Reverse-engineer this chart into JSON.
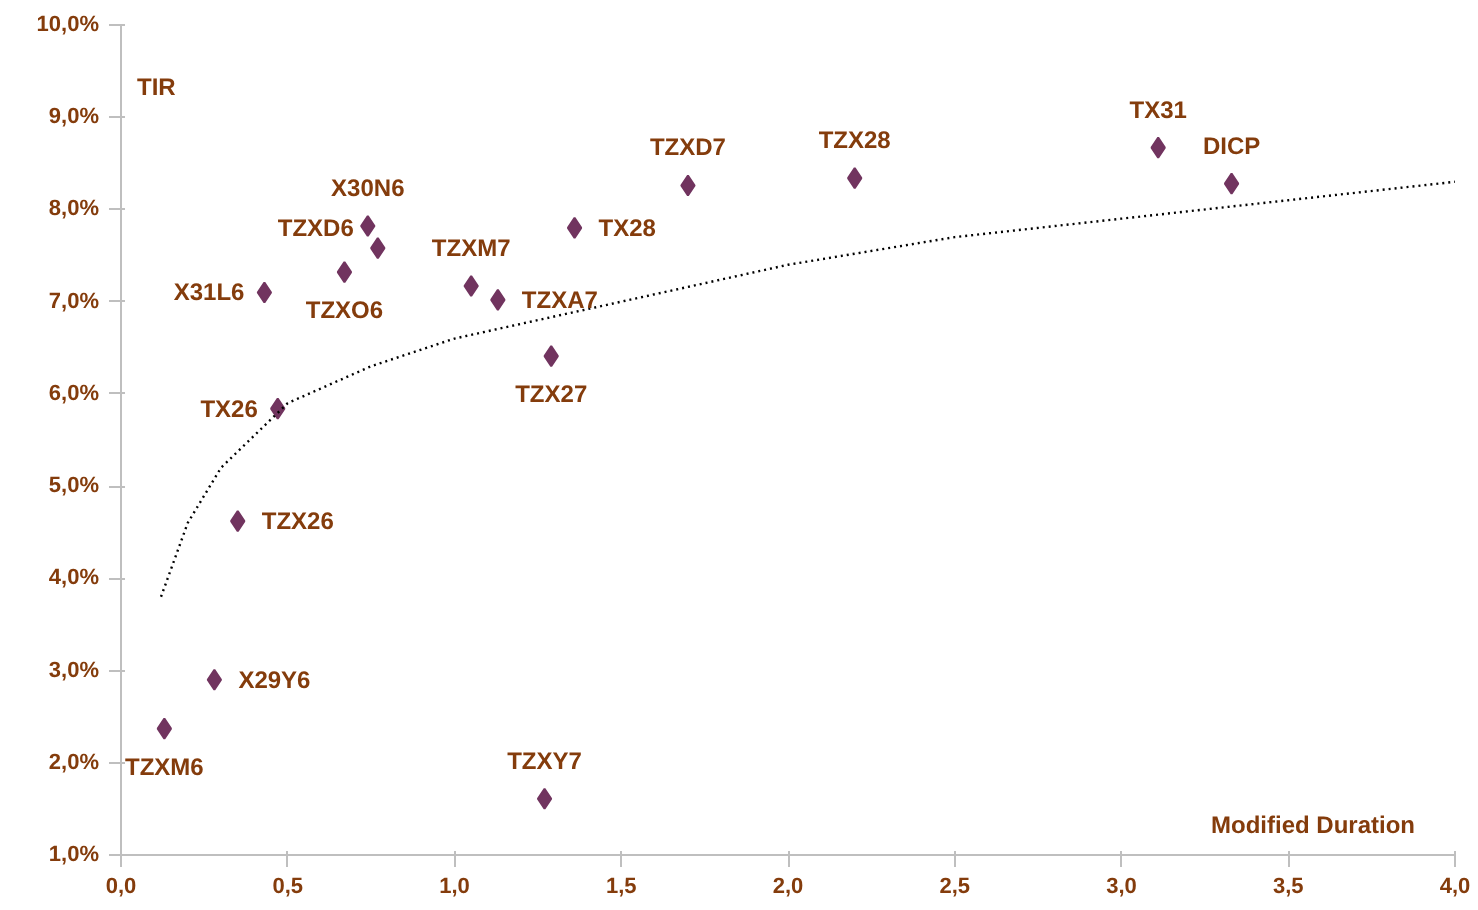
{
  "chart_data": {
    "type": "scatter",
    "xlabel": "Modified Duration",
    "ylabel": "TIR",
    "grid": false,
    "xlim": [
      0,
      4
    ],
    "ylim": [
      1,
      10
    ],
    "xticks": [
      {
        "value": 0,
        "label": "0,0"
      },
      {
        "value": 0.5,
        "label": "0,5"
      },
      {
        "value": 1,
        "label": "1,0"
      },
      {
        "value": 1.5,
        "label": "1,5"
      },
      {
        "value": 2,
        "label": "2,0"
      },
      {
        "value": 2.5,
        "label": "2,5"
      },
      {
        "value": 3,
        "label": "3,0"
      },
      {
        "value": 3.5,
        "label": "3,5"
      },
      {
        "value": 4,
        "label": "4,0"
      }
    ],
    "yticks": [
      {
        "value": 1,
        "label": "1,0%"
      },
      {
        "value": 2,
        "label": "2,0%"
      },
      {
        "value": 3,
        "label": "3,0%"
      },
      {
        "value": 4,
        "label": "4,0%"
      },
      {
        "value": 5,
        "label": "5,0%"
      },
      {
        "value": 6,
        "label": "6,0%"
      },
      {
        "value": 7,
        "label": "7,0%"
      },
      {
        "value": 8,
        "label": "8,0%"
      },
      {
        "value": 9,
        "label": "9,0%"
      },
      {
        "value": 10,
        "label": "10,0%"
      }
    ],
    "series": [
      {
        "marker": "diamond",
        "color": "#71345f",
        "x": [
          0.13,
          0.28,
          0.35,
          0.47,
          0.43,
          0.67,
          0.77,
          0.74,
          1.05,
          1.13,
          1.29,
          1.36,
          1.7,
          2.2,
          3.11,
          3.33,
          1.27
        ],
        "values": [
          2.37,
          2.9,
          4.62,
          5.84,
          7.1,
          7.32,
          7.58,
          7.82,
          7.17,
          7.02,
          6.41,
          7.8,
          8.26,
          8.34,
          8.67,
          8.28,
          1.61
        ]
      },
      {
        "type": "line",
        "color": "#000000",
        "line_style": "dotted",
        "x": [
          0.12,
          0.2,
          0.3,
          0.5,
          0.75,
          1.0,
          1.5,
          2.0,
          2.5,
          3.0,
          3.5,
          4.0
        ],
        "values": [
          3.8,
          4.6,
          5.2,
          5.9,
          6.3,
          6.6,
          7.0,
          7.4,
          7.7,
          7.9,
          8.1,
          8.3
        ]
      }
    ],
    "annotations": [
      {
        "text": "TZXM6",
        "x": 0.13,
        "y": 2.37
      },
      {
        "text": "X29Y6",
        "x": 0.28,
        "y": 2.9
      },
      {
        "text": "TZX26",
        "x": 0.35,
        "y": 4.62
      },
      {
        "text": "TX26",
        "x": 0.47,
        "y": 5.84
      },
      {
        "text": "X31L6",
        "x": 0.43,
        "y": 7.1
      },
      {
        "text": "TZXO6",
        "x": 0.67,
        "y": 7.32
      },
      {
        "text": "TZXD6",
        "x": 0.77,
        "y": 7.58
      },
      {
        "text": "X30N6",
        "x": 0.74,
        "y": 7.82
      },
      {
        "text": "TZXM7",
        "x": 1.05,
        "y": 7.17
      },
      {
        "text": "TZXA7",
        "x": 1.13,
        "y": 7.02
      },
      {
        "text": "TZX27",
        "x": 1.29,
        "y": 6.41
      },
      {
        "text": "TX28",
        "x": 1.36,
        "y": 7.8
      },
      {
        "text": "TZXD7",
        "x": 1.7,
        "y": 8.26
      },
      {
        "text": "TZX28",
        "x": 2.2,
        "y": 8.34
      },
      {
        "text": "TX31",
        "x": 3.11,
        "y": 8.67
      },
      {
        "text": "DICP",
        "x": 3.33,
        "y": 8.28
      },
      {
        "text": "TZXY7",
        "x": 1.27,
        "y": 1.61
      }
    ]
  }
}
